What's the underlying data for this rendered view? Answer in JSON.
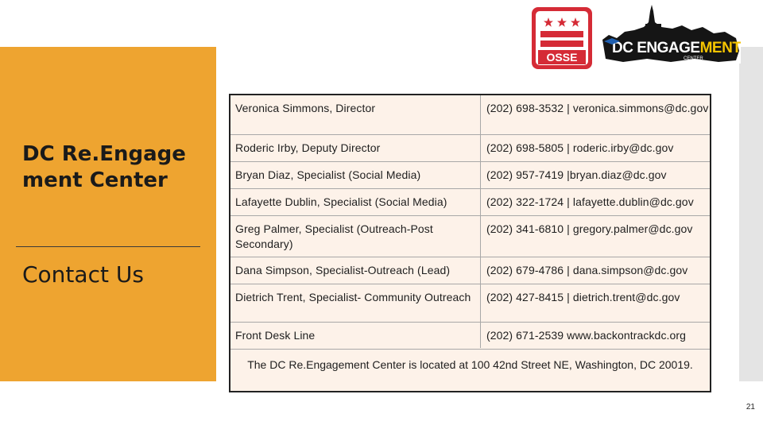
{
  "slide": {
    "title": "DC Re.Engagement Center",
    "subtitle": "Contact Us",
    "page_number": "21"
  },
  "logos": {
    "osse_text": "OSSE",
    "dc_engagement_text_part1": "DC ENGAGE",
    "dc_engagement_text_part2": "MENT",
    "dc_engagement_subtext": "CENTER"
  },
  "contacts": [
    {
      "name": "Veronica Simmons, Director",
      "contact": "(202) 698-3532 | veronica.simmons@dc.gov"
    },
    {
      "name": "Roderic Irby, Deputy Director",
      "contact": "(202) 698-5805 | roderic.irby@dc.gov"
    },
    {
      "name": "Bryan Diaz, Specialist (Social Media)",
      "contact": "(202) 957-7419 |bryan.diaz@dc.gov"
    },
    {
      "name": "Lafayette Dublin, Specialist (Social Media)",
      "contact": "(202) 322-1724 | lafayette.dublin@dc.gov"
    },
    {
      "name": "Greg Palmer, Specialist (Outreach-Post​Secondary)",
      "contact": "(202) 341-6810 | gregory.palmer@dc.gov"
    },
    {
      "name": "Dana Simpson, Specialist-Outreach (Lead)",
      "contact": "(202) 679-4786 | dana.simpson@dc.gov"
    },
    {
      "name": "Dietrich Trent, Specialist- Community Outreach",
      "contact": "(202) 427-8415 | dietrich.trent@dc.gov"
    },
    {
      "name": "Front Desk Line",
      "contact": " (202) 671-2539  www.backontrackdc.org"
    }
  ],
  "footer_note": "The DC Re.Engagement Center is located at 100 42nd Street NE, Washington, DC 20019.",
  "colors": {
    "accent_orange": "#eea430",
    "table_background": "#fdf2e9",
    "osse_red": "#d52b36"
  }
}
